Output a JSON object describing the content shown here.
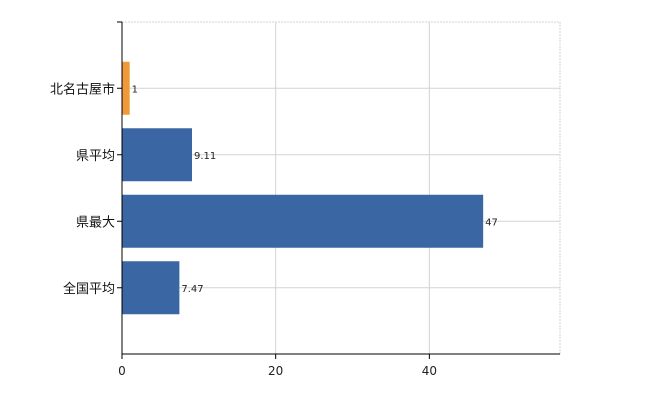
{
  "chart_data": {
    "type": "bar",
    "orientation": "horizontal",
    "title": "",
    "xlabel": "",
    "ylabel": "",
    "categories": [
      "北名古屋市",
      "県平均",
      "県最大",
      "全国平均"
    ],
    "values": [
      1,
      9.11,
      47,
      7.47
    ],
    "value_labels": [
      "1",
      "9.11",
      "47",
      "7.47"
    ],
    "bar_colors": [
      "#ef9a3a",
      "#3a66a4",
      "#3a66a4",
      "#3a66a4"
    ],
    "xlim": [
      0,
      57
    ],
    "x_ticks": [
      0,
      20,
      40
    ],
    "x_tick_labels": [
      "0",
      "20",
      "40"
    ],
    "grid": true,
    "legend": "none",
    "colors": {
      "highlight": "#ef9a3a",
      "default": "#3a66a4",
      "grid": "#d3d3d3",
      "axis": "#000000"
    }
  }
}
